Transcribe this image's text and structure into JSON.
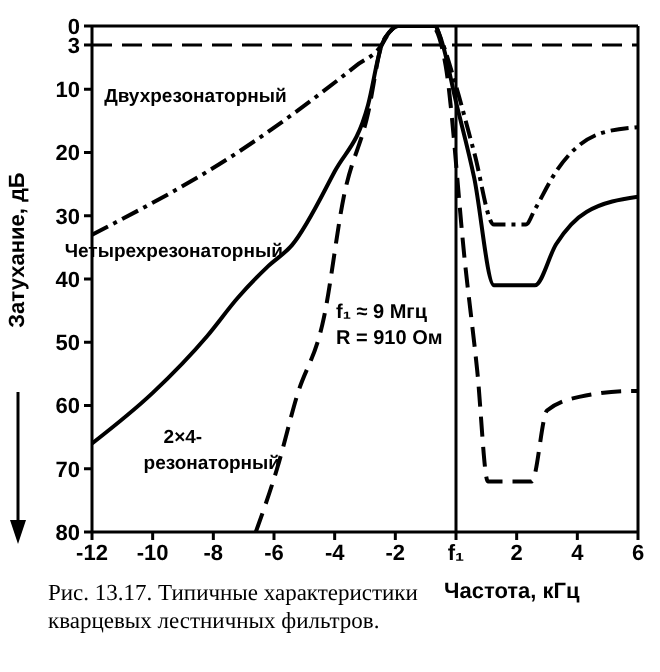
{
  "chart_data": {
    "type": "line",
    "xlabel": "Частота, кГц",
    "ylabel": "Затухание, дБ",
    "xlim": [
      -12,
      6
    ],
    "xticks": [
      -12,
      -10,
      -8,
      -6,
      -4,
      -2,
      {
        "value": 0,
        "label": "f₁"
      },
      2,
      4,
      6
    ],
    "ylim": [
      80,
      0
    ],
    "yticks": [
      0,
      3,
      10,
      20,
      30,
      40,
      50,
      60,
      70,
      80
    ],
    "marker": "none",
    "ref_lines": [
      {
        "axis": "y",
        "value": 3,
        "line_style": "dashed",
        "color": "#000000"
      },
      {
        "axis": "x",
        "value": 0,
        "line_style": "solid",
        "color": "#000000"
      }
    ],
    "annotations": [
      "f₁ ≈ 9 Мгц",
      "R = 910 Ом",
      "Рис. 13.17. Типичные характеристики кварцевых лестничных фильтров."
    ],
    "series": [
      {
        "name": "Двухрезонаторный",
        "color": "#000000",
        "line_style": "dotted",
        "x": [
          -12,
          -7.2,
          -3.3,
          -2.45,
          -2.2,
          -1.9,
          -0.7,
          -0.5,
          0,
          0.6,
          1.25,
          2.3,
          2.6,
          3.3,
          4.75,
          6
        ],
        "values": [
          33,
          20,
          6.3,
          3,
          1,
          0,
          0,
          2,
          9.5,
          20,
          31.4,
          31.4,
          29,
          23,
          17,
          16
        ]
      },
      {
        "name": "Четырехрезонаторный",
        "color": "#000000",
        "line_style": "solid",
        "x": [
          -12,
          -10,
          -8.2,
          -7.2,
          -6.2,
          -5.4,
          -4,
          -2.9,
          -2.45,
          -2.2,
          -1.9,
          -0.7,
          -0.5,
          0,
          0.6,
          1.25,
          2.6,
          3.3,
          4.3,
          6
        ],
        "values": [
          66,
          58,
          49,
          43,
          38,
          34.6,
          23,
          12.5,
          3,
          1,
          0,
          0,
          2,
          12,
          24,
          41,
          41,
          34.5,
          29.4,
          27
        ]
      },
      {
        "name": "2×4-резонаторный",
        "color": "#000000",
        "line_style": "dashed",
        "x": [
          -6.6,
          -5.9,
          -5.25,
          -4.35,
          -3.7,
          -2.9,
          -2.45,
          -2.2,
          -1.9,
          -0.8,
          -0.34,
          0.3,
          0.7,
          1.05,
          2.5,
          3,
          4.1,
          5.8,
          6
        ],
        "values": [
          80,
          70,
          58.6,
          46,
          27,
          13.8,
          3,
          1,
          0,
          0,
          6.3,
          37.6,
          54.5,
          72,
          72,
          60.8,
          58.6,
          57.7,
          57.7
        ]
      }
    ]
  }
}
